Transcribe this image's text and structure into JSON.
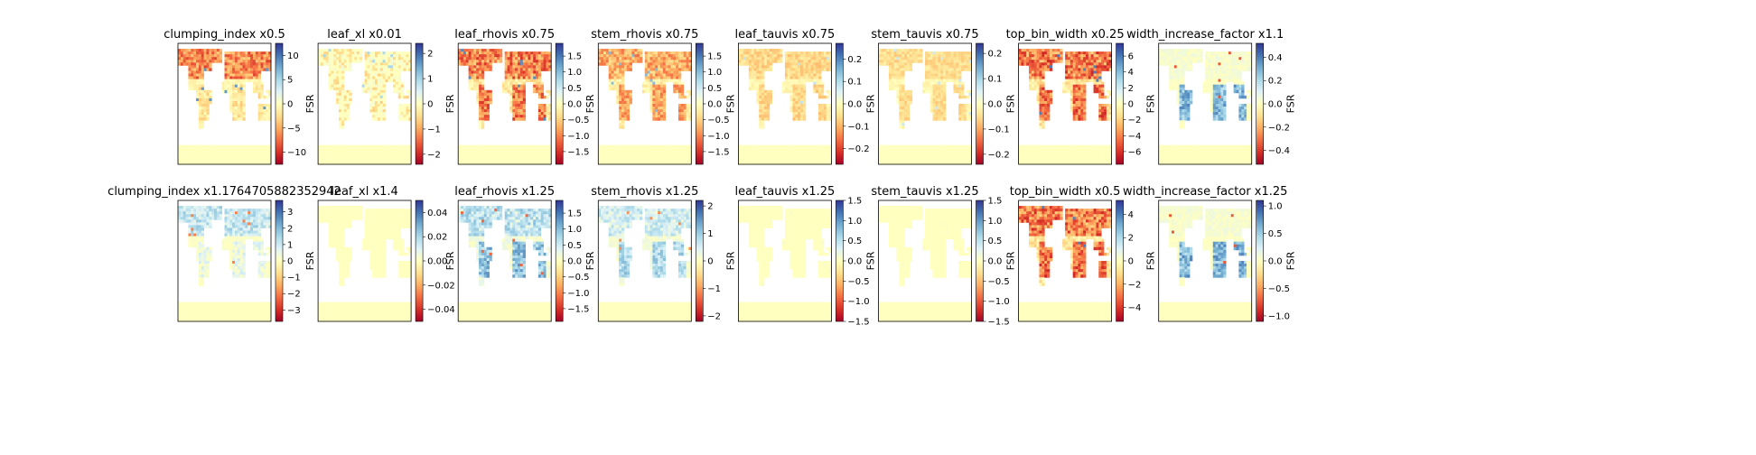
{
  "figure": {
    "colormap": "RdYlBu",
    "colormap_stops": [
      "#a50026",
      "#d73027",
      "#f46d43",
      "#fdae61",
      "#fee090",
      "#ffffbf",
      "#e0f3f8",
      "#abd9e9",
      "#74add1",
      "#4575b4",
      "#313695"
    ],
    "nan_color": "#ffffff",
    "land_neutral_color": "#ffffbf"
  },
  "chart_data": [
    {
      "type": "heatmap",
      "title": "clumping_index x0.5",
      "colorbar_label": "FSR",
      "clim": [
        -12.5,
        12.5
      ],
      "ticks": [
        10,
        5,
        0,
        -5,
        -10
      ],
      "tick_labels": [
        "10",
        "5",
        "0",
        "−5",
        "−10"
      ],
      "pattern": "north-red",
      "intensity": 0.75
    },
    {
      "type": "heatmap",
      "title": "leaf_xl x0.01",
      "colorbar_label": "FSR",
      "clim": [
        -2.4,
        2.4
      ],
      "ticks": [
        2,
        1,
        0,
        -1,
        -2
      ],
      "tick_labels": [
        "2",
        "1",
        "0",
        "−1",
        "−2"
      ],
      "pattern": "mixed-sparse",
      "intensity": 0.45
    },
    {
      "type": "heatmap",
      "title": "leaf_rhovis x0.75",
      "colorbar_label": "FSR",
      "clim": [
        -1.9,
        1.9
      ],
      "ticks": [
        1.5,
        1.0,
        0.5,
        0.0,
        -0.5,
        -1.0,
        -1.5
      ],
      "tick_labels": [
        "1.5",
        "1.0",
        "0.5",
        "0.0",
        "−0.5",
        "−1.0",
        "−1.5"
      ],
      "pattern": "widespread-red",
      "intensity": 0.8
    },
    {
      "type": "heatmap",
      "title": "stem_rhovis x0.75",
      "colorbar_label": "FSR",
      "clim": [
        -1.9,
        1.9
      ],
      "ticks": [
        1.5,
        1.0,
        0.5,
        0.0,
        -0.5,
        -1.0,
        -1.5
      ],
      "tick_labels": [
        "1.5",
        "1.0",
        "0.5",
        "0.0",
        "−0.5",
        "−1.0",
        "−1.5"
      ],
      "pattern": "widespread-red",
      "intensity": 0.6
    },
    {
      "type": "heatmap",
      "title": "leaf_tauvis x0.75",
      "colorbar_label": "FSR",
      "clim": [
        -0.27,
        0.27
      ],
      "ticks": [
        0.2,
        0.1,
        0.0,
        -0.1,
        -0.2
      ],
      "tick_labels": [
        "0.2",
        "0.1",
        "0.0",
        "−0.1",
        "−0.2"
      ],
      "pattern": "widespread-red",
      "intensity": 0.35
    },
    {
      "type": "heatmap",
      "title": "stem_tauvis x0.75",
      "colorbar_label": "FSR",
      "clim": [
        -0.24,
        0.24
      ],
      "ticks": [
        0.2,
        0.1,
        0.0,
        -0.1,
        -0.2
      ],
      "tick_labels": [
        "0.2",
        "0.1",
        "0.0",
        "−0.1",
        "−0.2"
      ],
      "pattern": "widespread-red",
      "intensity": 0.3
    },
    {
      "type": "heatmap",
      "title": "top_bin_width x0.25",
      "colorbar_label": "FSR",
      "clim": [
        -7.6,
        7.6
      ],
      "ticks": [
        6,
        4,
        2,
        0,
        -2,
        -4,
        -6
      ],
      "tick_labels": [
        "6",
        "4",
        "2",
        "0",
        "−2",
        "−4",
        "−6"
      ],
      "pattern": "widespread-red",
      "intensity": 0.85
    },
    {
      "type": "heatmap",
      "title": "width_increase_factor x1.1",
      "colorbar_label": "FSR",
      "clim": [
        -0.52,
        0.52
      ],
      "ticks": [
        0.4,
        0.2,
        0.0,
        -0.2,
        -0.4
      ],
      "tick_labels": [
        "0.4",
        "0.2",
        "0.0",
        "−0.2",
        "−0.4"
      ],
      "pattern": "tropics-blue",
      "intensity": 0.75
    },
    {
      "type": "heatmap",
      "title": "clumping_index x1.1764705882352942",
      "colorbar_label": "FSR",
      "clim": [
        -3.7,
        3.7
      ],
      "ticks": [
        3,
        2,
        1,
        0,
        -1,
        -2,
        -3
      ],
      "tick_labels": [
        "3",
        "2",
        "1",
        "0",
        "−1",
        "−2",
        "−3"
      ],
      "pattern": "north-blue",
      "intensity": 0.6
    },
    {
      "type": "heatmap",
      "title": "leaf_xl x1.4",
      "colorbar_label": "FSR",
      "clim": [
        -0.05,
        0.05
      ],
      "ticks": [
        0.04,
        0.02,
        0.0,
        -0.02,
        -0.04
      ],
      "tick_labels": [
        "0.04",
        "0.02",
        "0.00",
        "−0.02",
        "−0.04"
      ],
      "pattern": "uniform",
      "intensity": 0.02
    },
    {
      "type": "heatmap",
      "title": "leaf_rhovis x1.25",
      "colorbar_label": "FSR",
      "clim": [
        -1.9,
        1.9
      ],
      "ticks": [
        1.5,
        1.0,
        0.5,
        0.0,
        -0.5,
        -1.0,
        -1.5
      ],
      "tick_labels": [
        "1.5",
        "1.0",
        "0.5",
        "0.0",
        "−0.5",
        "−1.0",
        "−1.5"
      ],
      "pattern": "widespread-blue",
      "intensity": 0.7
    },
    {
      "type": "heatmap",
      "title": "stem_rhovis x1.25",
      "colorbar_label": "FSR",
      "clim": [
        -2.2,
        2.2
      ],
      "ticks": [
        2,
        1,
        0,
        -1,
        -2
      ],
      "tick_labels": [
        "2",
        "1",
        "0",
        "−1",
        "−2"
      ],
      "pattern": "widespread-blue",
      "intensity": 0.55
    },
    {
      "type": "heatmap",
      "title": "leaf_tauvis x1.25",
      "colorbar_label": "FSR",
      "clim": [
        -1.5,
        1.5
      ],
      "ticks": [
        1.5,
        1.0,
        0.5,
        0.0,
        -0.5,
        -1.0,
        -1.5
      ],
      "tick_labels": [
        "1.5",
        "1.0",
        "0.5",
        "0.0",
        "−0.5",
        "−1.0",
        "−1.5"
      ],
      "pattern": "uniform",
      "intensity": 0.05
    },
    {
      "type": "heatmap",
      "title": "stem_tauvis x1.25",
      "colorbar_label": "FSR",
      "clim": [
        -1.5,
        1.5
      ],
      "ticks": [
        1.5,
        1.0,
        0.5,
        0.0,
        -0.5,
        -1.0,
        -1.5
      ],
      "tick_labels": [
        "1.5",
        "1.0",
        "0.5",
        "0.0",
        "−0.5",
        "−1.0",
        "−1.5"
      ],
      "pattern": "uniform",
      "intensity": 0.05
    },
    {
      "type": "heatmap",
      "title": "top_bin_width x0.5",
      "colorbar_label": "FSR",
      "clim": [
        -5.2,
        5.2
      ],
      "ticks": [
        4,
        2,
        0,
        -2,
        -4
      ],
      "tick_labels": [
        "4",
        "2",
        "0",
        "−2",
        "−4"
      ],
      "pattern": "widespread-red",
      "intensity": 0.85
    },
    {
      "type": "heatmap",
      "title": "width_increase_factor x1.25",
      "colorbar_label": "FSR",
      "clim": [
        -1.1,
        1.1
      ],
      "ticks": [
        1.0,
        0.5,
        0.0,
        -0.5,
        -1.0
      ],
      "tick_labels": [
        "1.0",
        "0.5",
        "0.0",
        "−0.5",
        "−1.0"
      ],
      "pattern": "tropics-blue",
      "intensity": 0.75
    }
  ]
}
